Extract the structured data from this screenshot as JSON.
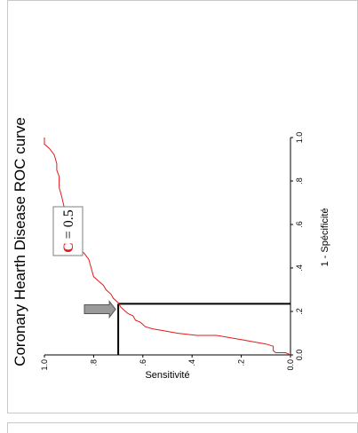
{
  "chart_data": {
    "type": "line",
    "title": "Coronary Hearth Disease ROC curve",
    "xlabel": "1 - Spécificité",
    "ylabel": "Sensitivité",
    "xlim": [
      0,
      1
    ],
    "ylim": [
      0,
      1
    ],
    "x_ticks": [
      "0.0",
      ".2",
      ".4",
      ".6",
      ".8",
      "1.0"
    ],
    "y_ticks": [
      "0.0",
      ".2",
      ".4",
      ".6",
      ".8",
      "1.0"
    ],
    "orientation": "rotated 90 degrees counter-clockwise",
    "series": [
      {
        "color": "#e31a1c",
        "points": [
          [
            0.0,
            0.0
          ],
          [
            0.01,
            0.02
          ],
          [
            0.01,
            0.06
          ],
          [
            0.02,
            0.07
          ],
          [
            0.04,
            0.07
          ],
          [
            0.05,
            0.1
          ],
          [
            0.06,
            0.15
          ],
          [
            0.07,
            0.2
          ],
          [
            0.08,
            0.25
          ],
          [
            0.09,
            0.3
          ],
          [
            0.09,
            0.38
          ],
          [
            0.1,
            0.46
          ],
          [
            0.11,
            0.51
          ],
          [
            0.12,
            0.56
          ],
          [
            0.13,
            0.59
          ],
          [
            0.15,
            0.61
          ],
          [
            0.16,
            0.63
          ],
          [
            0.18,
            0.64
          ],
          [
            0.19,
            0.66
          ],
          [
            0.2,
            0.67
          ],
          [
            0.22,
            0.69
          ],
          [
            0.24,
            0.7
          ],
          [
            0.26,
            0.72
          ],
          [
            0.28,
            0.73
          ],
          [
            0.3,
            0.75
          ],
          [
            0.32,
            0.76
          ],
          [
            0.34,
            0.78
          ],
          [
            0.36,
            0.8
          ],
          [
            0.4,
            0.81
          ],
          [
            0.44,
            0.82
          ],
          [
            0.47,
            0.84
          ],
          [
            0.48,
            0.86
          ],
          [
            0.52,
            0.87
          ],
          [
            0.56,
            0.88
          ],
          [
            0.58,
            0.9
          ],
          [
            0.62,
            0.91
          ],
          [
            0.68,
            0.92
          ],
          [
            0.73,
            0.93
          ],
          [
            0.77,
            0.94
          ],
          [
            0.82,
            0.94
          ],
          [
            0.85,
            0.95
          ],
          [
            0.88,
            0.95
          ],
          [
            0.92,
            0.96
          ],
          [
            0.95,
            0.98
          ],
          [
            0.97,
            1.0
          ],
          [
            1.0,
            1.0
          ]
        ]
      }
    ],
    "reference_lines": [
      {
        "from": [
          0.0,
          0.7
        ],
        "to": [
          0.235,
          0.7
        ]
      },
      {
        "from": [
          0.235,
          0.0
        ],
        "to": [
          0.235,
          0.7
        ]
      }
    ],
    "annotation": {
      "letter": "C",
      "rest": " = 0.5",
      "letter_color": "#e31a1c",
      "arrow_target": [
        0.21,
        0.7
      ]
    }
  }
}
